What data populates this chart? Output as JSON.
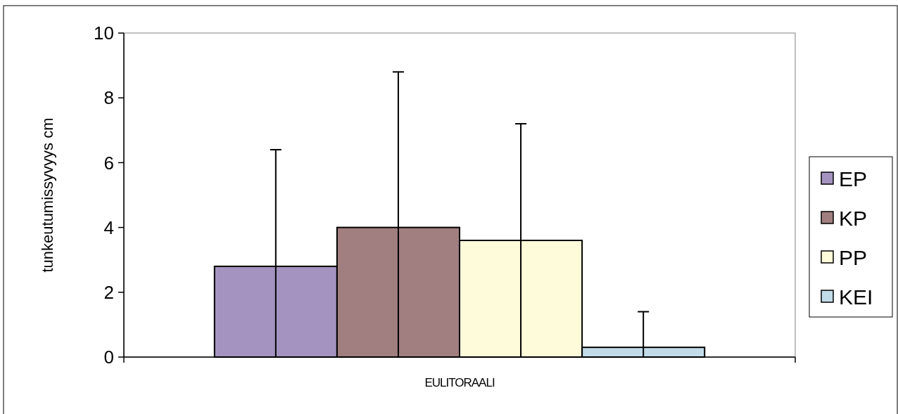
{
  "chart_data": {
    "type": "bar",
    "ylabel": "tunkeutumissyvyys cm",
    "categories": [
      "EULITORAALI"
    ],
    "series": [
      {
        "name": "EP",
        "color": "#a493c0",
        "values": [
          2.8
        ],
        "errors": [
          [
            0,
            6.4
          ]
        ]
      },
      {
        "name": "KP",
        "color": "#a17e7f",
        "values": [
          4.0
        ],
        "errors": [
          [
            0,
            8.8
          ]
        ]
      },
      {
        "name": "PP",
        "color": "#fefbda",
        "values": [
          3.6
        ],
        "errors": [
          3.6
        ]
      },
      {
        "name": "KEI",
        "color": "#c1dbe9",
        "values": [
          0.3
        ],
        "errors": [
          [
            0,
            1.4
          ]
        ]
      }
    ],
    "ylim": [
      0,
      10
    ],
    "yticks": [
      0,
      2,
      4,
      6,
      8,
      10
    ],
    "grid": false,
    "legend": "right"
  }
}
